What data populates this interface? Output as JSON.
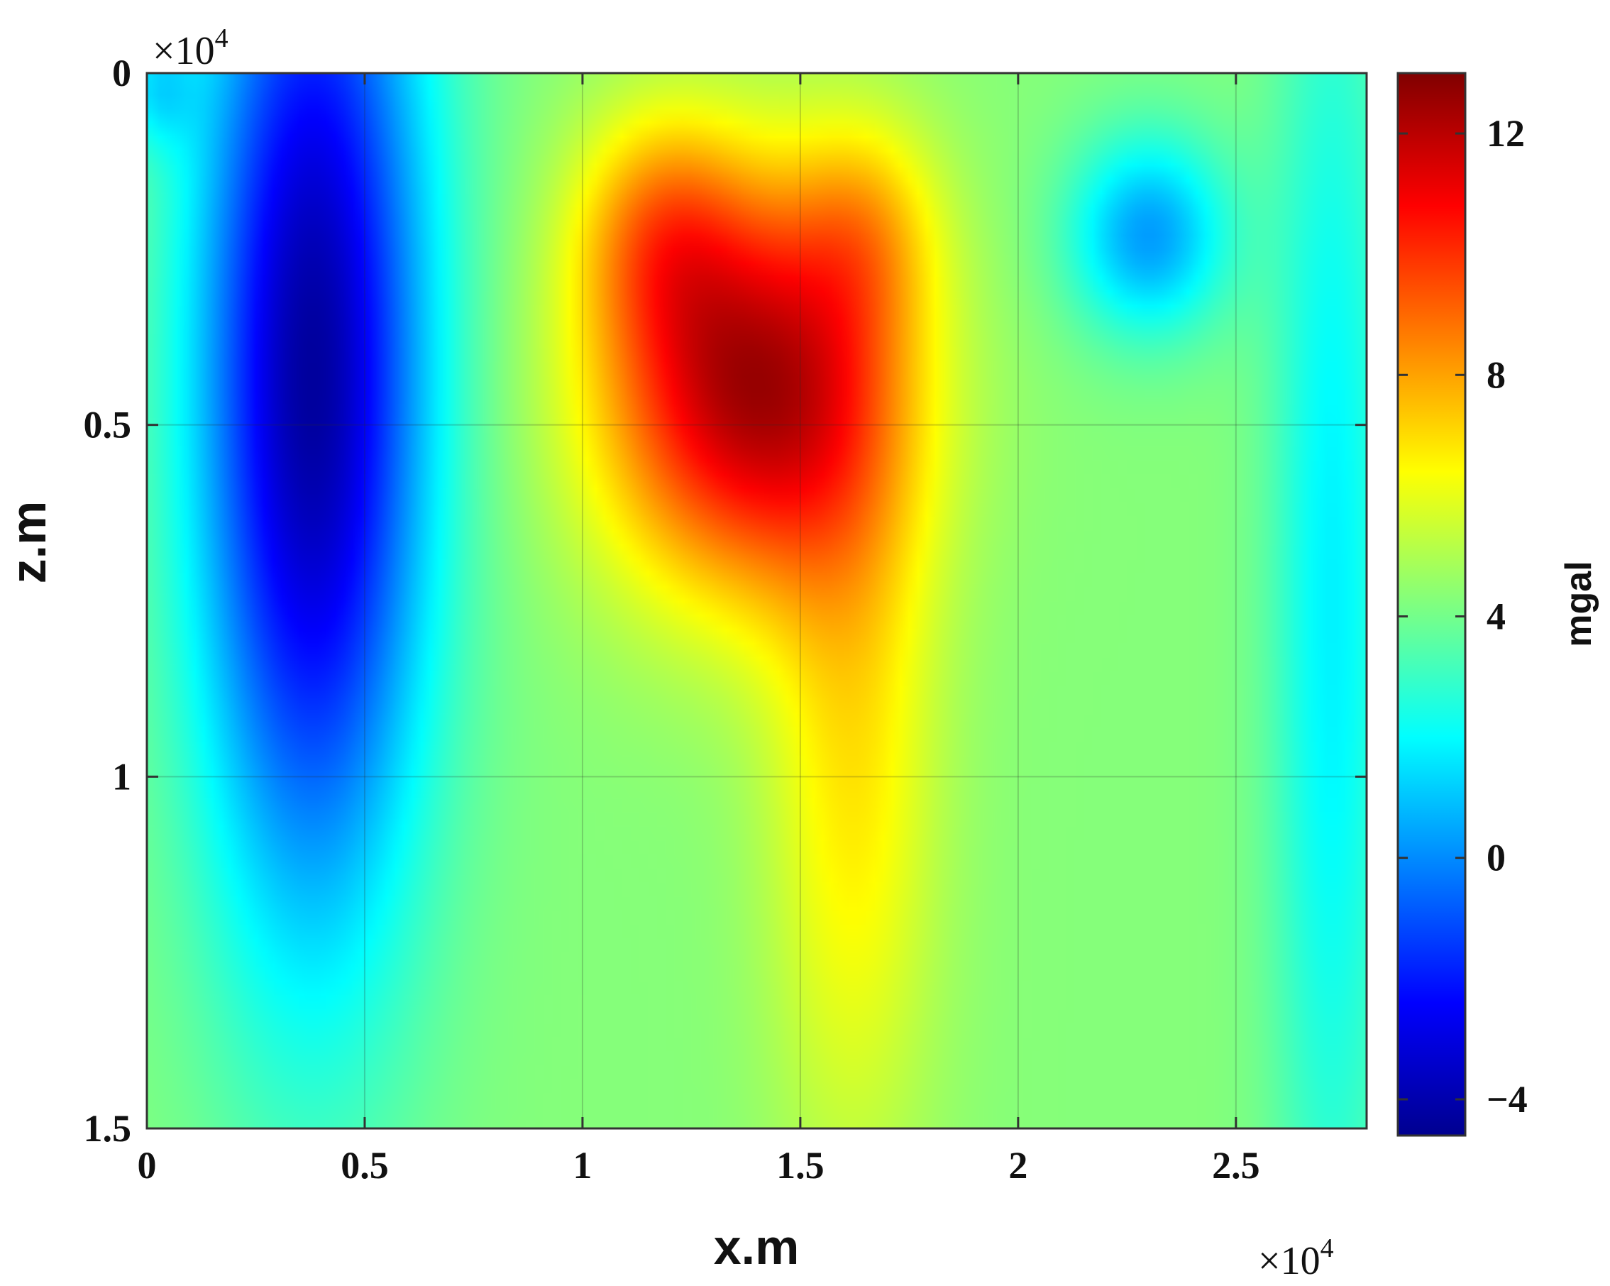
{
  "chart_data": {
    "type": "heatmap",
    "title": "",
    "xlabel": "x.m",
    "ylabel": "z.m",
    "x_multiplier": "×10",
    "x_multiplier_exp": "4",
    "y_multiplier": "×10",
    "y_multiplier_exp": "4",
    "xlim": [
      0,
      2.8
    ],
    "ylim": [
      0,
      1.5
    ],
    "y_reversed": true,
    "xticks": [
      0,
      0.5,
      1,
      1.5,
      2,
      2.5
    ],
    "xtick_labels": [
      "0",
      "0.5",
      "1",
      "1.5",
      "2",
      "2.5"
    ],
    "yticks": [
      0,
      0.5,
      1,
      1.5
    ],
    "ytick_labels": [
      "0",
      "0.5",
      "1",
      "1.5"
    ],
    "grid": true,
    "colormap": "jet",
    "colorbar": {
      "label": "mgal",
      "range": [
        -4.6,
        13.0
      ],
      "ticks": [
        -4,
        0,
        4,
        8,
        12
      ],
      "tick_labels": [
        "−4",
        "0",
        "4",
        "8",
        "12"
      ]
    },
    "features": [
      {
        "kind": "background",
        "value": 4.3
      },
      {
        "kind": "min",
        "x": 0.38,
        "z": 0.43,
        "sx": 0.19,
        "sz": 0.55,
        "value": -8.4
      },
      {
        "kind": "min",
        "x": 0.02,
        "z": 0.02,
        "sx": 0.06,
        "sz": 0.06,
        "value": -2.0
      },
      {
        "kind": "max",
        "x": 1.38,
        "z": 0.45,
        "sx": 0.24,
        "sz": 0.2,
        "value": 7.8
      },
      {
        "kind": "max",
        "x": 1.18,
        "z": 0.22,
        "sx": 0.14,
        "sz": 0.12,
        "value": 3.0
      },
      {
        "kind": "max",
        "x": 1.65,
        "z": 0.22,
        "sx": 0.12,
        "sz": 0.11,
        "value": 2.0
      },
      {
        "kind": "max",
        "x": 1.62,
        "z": 0.95,
        "sx": 0.14,
        "sz": 0.42,
        "value": 2.5
      },
      {
        "kind": "min",
        "x": 2.3,
        "z": 0.23,
        "sx": 0.13,
        "sz": 0.1,
        "value": -4.0
      },
      {
        "kind": "min",
        "x": 2.72,
        "z": 0.75,
        "sx": 0.1,
        "sz": 0.75,
        "value": -2.5
      }
    ]
  }
}
